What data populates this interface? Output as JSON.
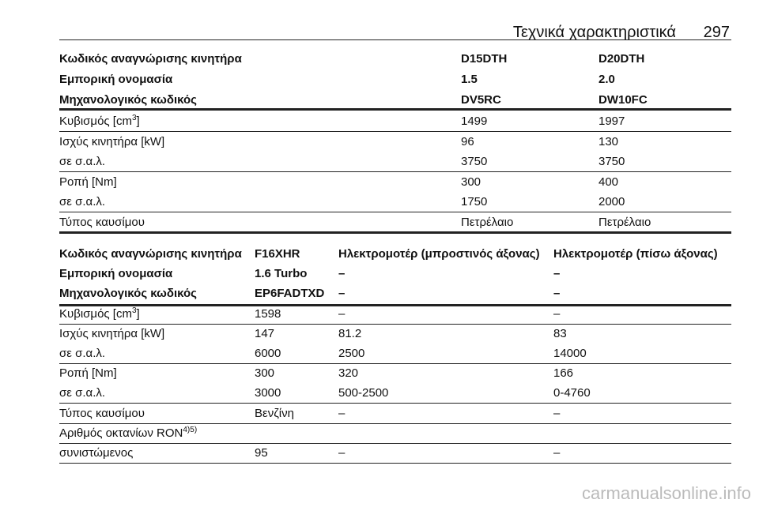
{
  "header": {
    "title": "Τεχνικά χαρακτηριστικά",
    "page": "297"
  },
  "tables": [
    {
      "header": [
        [
          "Κωδικός αναγνώρισης κινητήρα",
          "D15DTH",
          "D20DTH"
        ],
        [
          "Εμπορική ονομασία",
          "1.5",
          "2.0"
        ],
        [
          "Μηχανολογικός κωδικός",
          "DV5RC",
          "DW10FC"
        ]
      ],
      "rows": [
        [
          {
            "text": "Κυβισμός [cm",
            "sup": "3",
            "tail": "]"
          },
          "1499",
          "1997"
        ],
        [
          "Ισχύς κινητήρα [kW]",
          "96",
          "130"
        ],
        [
          "σε σ.α.λ.",
          "3750",
          "3750"
        ],
        [
          "Ροπή [Nm]",
          "300",
          "400"
        ],
        [
          "σε σ.α.λ.",
          "1750",
          "2000"
        ],
        [
          "Τύπος καυσίμου",
          "Πετρέλαιο",
          "Πετρέλαιο"
        ]
      ]
    },
    {
      "header": [
        [
          "Κωδικός αναγνώρισης κινητήρα",
          "F16XHR",
          "Ηλεκτρομοτέρ (μπροστινός άξονας)",
          "Ηλεκτρομοτέρ (πίσω άξονας)"
        ],
        [
          "Εμπορική ονομασία",
          "1.6 Turbo",
          "–",
          "–"
        ],
        [
          "Μηχανολογικός κωδικός",
          "EP6FADTXD",
          "–",
          "–"
        ]
      ],
      "rows": [
        [
          {
            "text": "Κυβισμός [cm",
            "sup": "3",
            "tail": "]"
          },
          "1598",
          "–",
          "–"
        ],
        [
          "Ισχύς κινητήρα [kW]",
          "147",
          "81.2",
          "83"
        ],
        [
          "σε σ.α.λ.",
          "6000",
          "2500",
          "14000"
        ],
        [
          "Ροπή [Nm]",
          "300",
          "320",
          "166"
        ],
        [
          "σε σ.α.λ.",
          "3000",
          "500-2500",
          "0-4760"
        ],
        [
          "Τύπος καυσίμου",
          "Βενζίνη",
          "–",
          "–"
        ],
        [
          {
            "text": "Αριθμός οκτανίων RON",
            "sup": "4)5)"
          }
        ],
        [
          "συνιστώμενος",
          "95",
          "–",
          "–"
        ]
      ]
    }
  ],
  "watermark": "carmanualsonline.info"
}
